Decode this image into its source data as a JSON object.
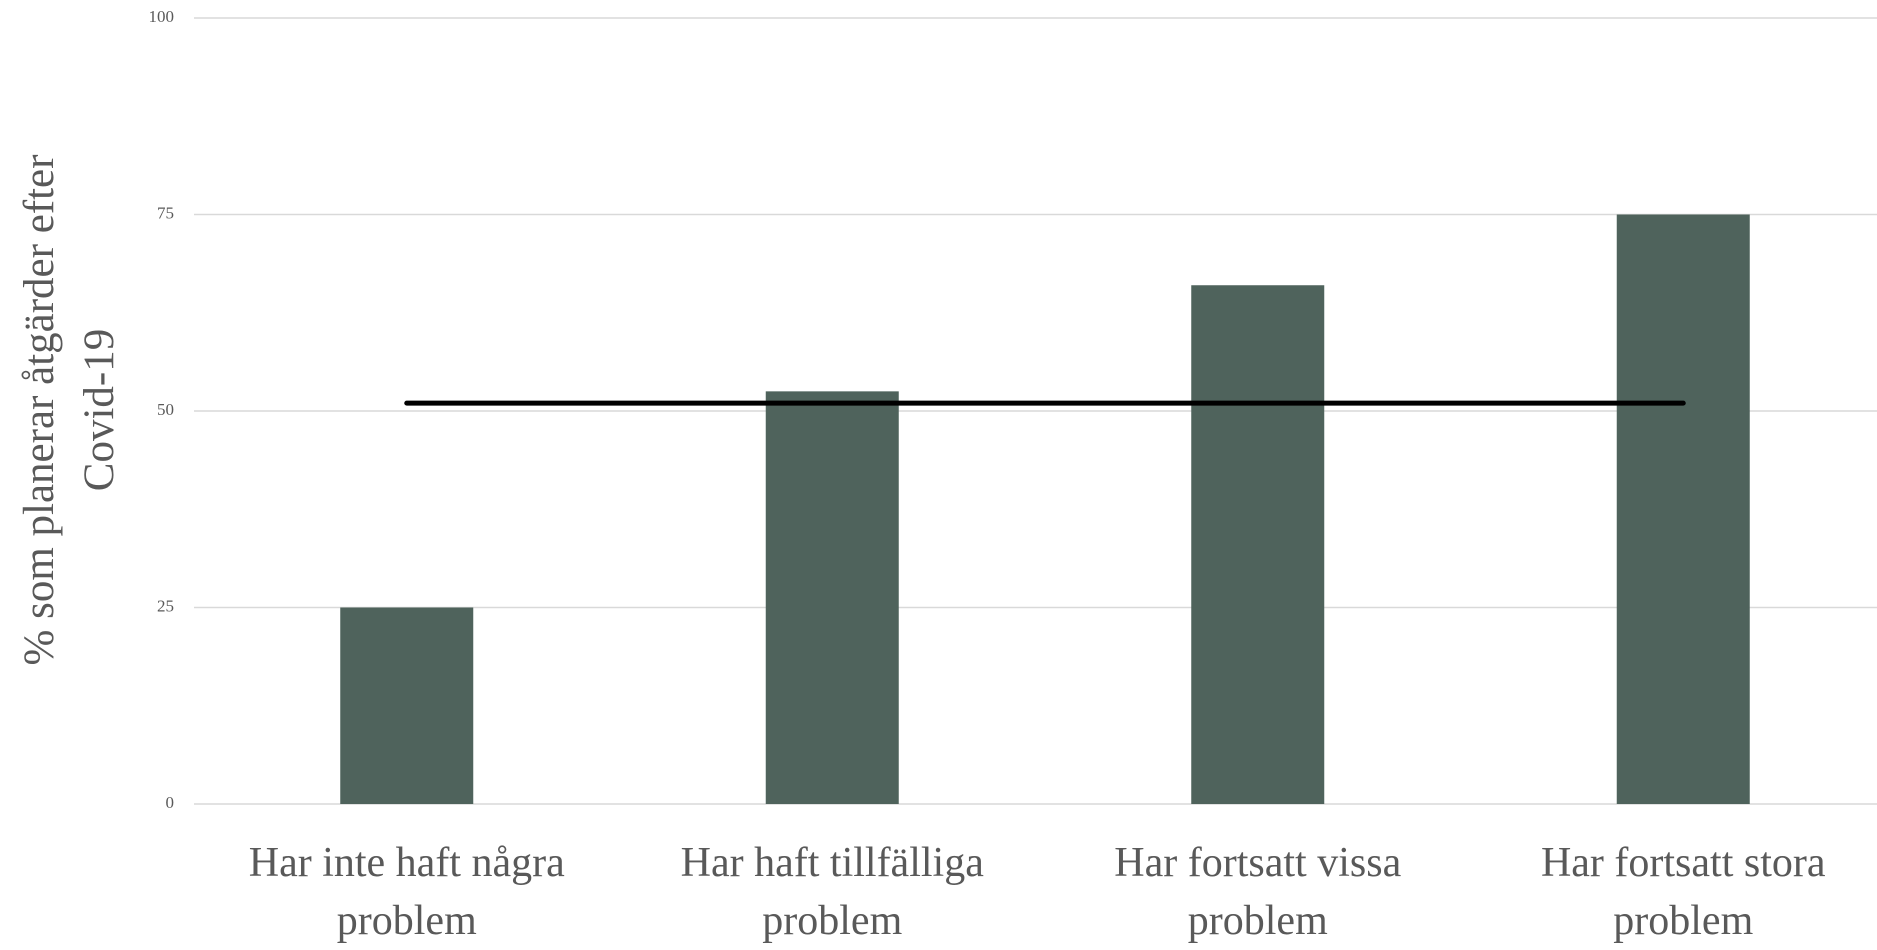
{
  "chart_data": {
    "type": "bar",
    "y_label": "% som planerar åtgärder efter Covid-19",
    "categories": [
      "Har inte haft några problem",
      "Har haft tillfälliga problem",
      "Har fortsatt vissa problem",
      "Har fortsatt stora problem"
    ],
    "values": [
      25,
      52.5,
      66,
      75
    ],
    "color": "#4f635c",
    "reference_value": 51,
    "reference_color": "#000000",
    "ylim": [
      0,
      100
    ],
    "yticks": [
      0,
      25,
      50,
      75,
      100
    ],
    "grid": true
  }
}
